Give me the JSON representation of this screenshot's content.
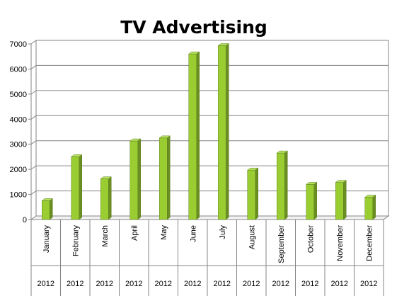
{
  "chart_data": {
    "type": "bar",
    "title": "TV Advertising",
    "categories": [
      "January",
      "February",
      "March",
      "April",
      "May",
      "June",
      "July",
      "August",
      "September",
      "October",
      "November",
      "December"
    ],
    "group_labels": [
      "2012",
      "2012",
      "2012",
      "2012",
      "2012",
      "2012",
      "2012",
      "2012",
      "2012",
      "2012",
      "2012",
      "2012"
    ],
    "values": [
      750,
      2500,
      1620,
      3130,
      3250,
      6600,
      6930,
      1970,
      2650,
      1400,
      1480,
      890
    ],
    "ylim": [
      0,
      7000
    ],
    "yticks": [
      0,
      1000,
      2000,
      3000,
      4000,
      5000,
      6000,
      7000
    ],
    "ytick_labels": [
      "0",
      "1000",
      "2000",
      "3000",
      "4000",
      "5000",
      "6000",
      "7000"
    ],
    "grid": true,
    "legend": "none",
    "bar_color": "#9acd32",
    "bar_side_color": "#6b8e23",
    "bar_top_color": "#b5e061",
    "grid_color": "#868686"
  }
}
